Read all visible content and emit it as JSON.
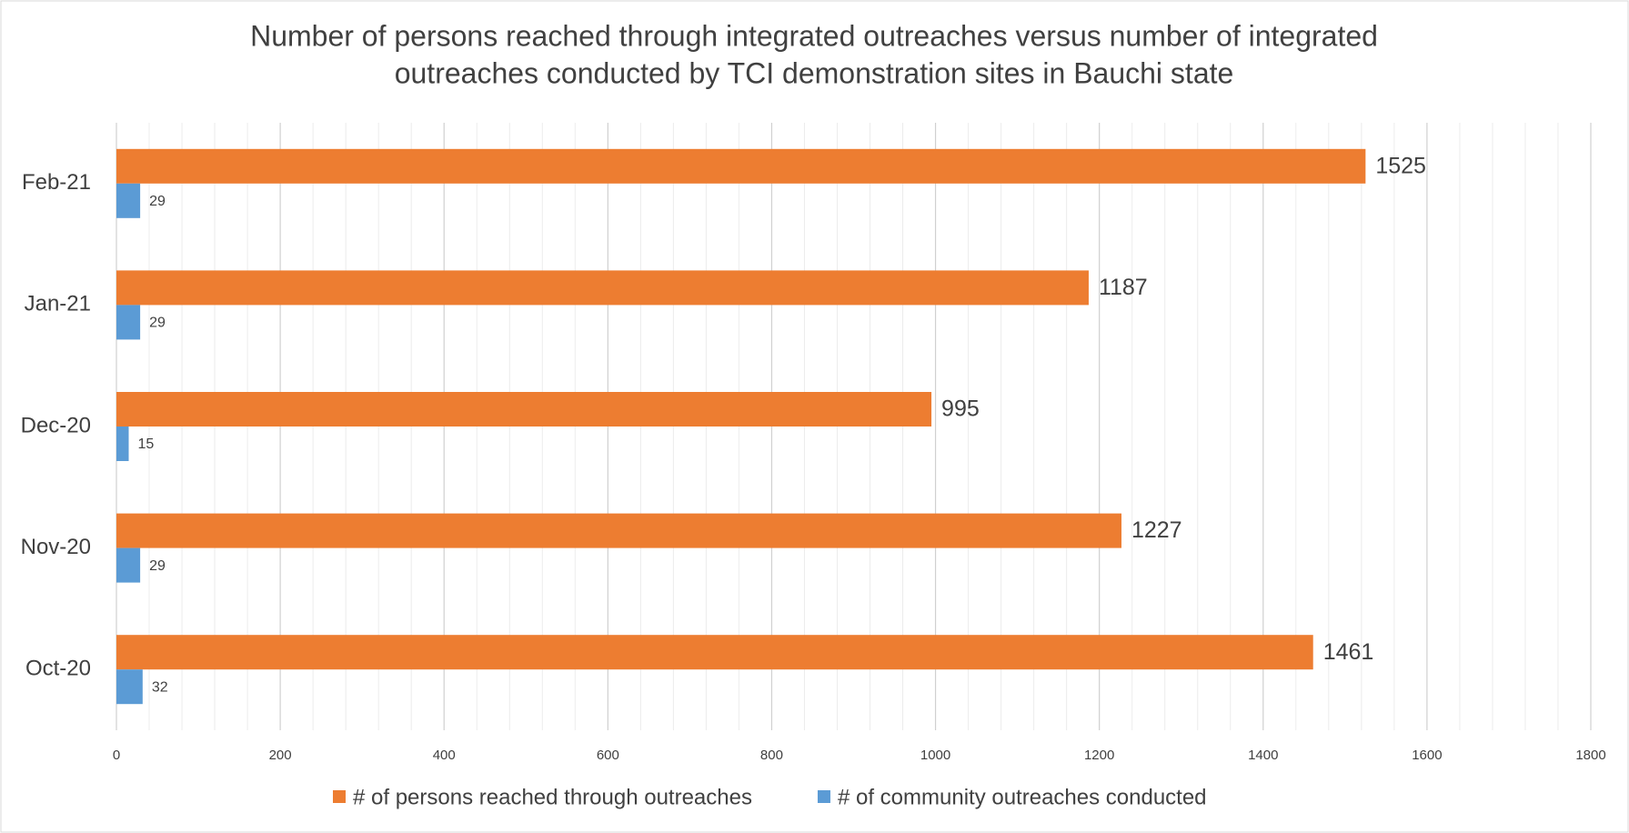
{
  "chart_data": {
    "type": "bar",
    "orientation": "horizontal",
    "title": "Number of persons reached through integrated outreaches versus number of integrated outreaches conducted by TCI demonstration sites in Bauchi state",
    "title_lines": [
      "Number of persons reached through integrated outreaches versus number of integrated",
      "outreaches conducted by TCI demonstration sites in Bauchi state"
    ],
    "categories": [
      "Oct-20",
      "Nov-20",
      "Dec-20",
      "Jan-21",
      "Feb-21"
    ],
    "series": [
      {
        "name": "# of persons reached through outreaches",
        "color": "#ED7D31",
        "values": [
          1461,
          1227,
          995,
          1187,
          1525
        ]
      },
      {
        "name": "# of community outreaches conducted",
        "color": "#5B9BD5",
        "values": [
          32,
          29,
          15,
          29,
          29
        ]
      }
    ],
    "xlim": [
      0,
      1800
    ],
    "xticks": [
      0,
      200,
      400,
      600,
      800,
      1000,
      1200,
      1400,
      1600,
      1800
    ],
    "grid": true,
    "minor_grid": true,
    "legend": "bottom"
  }
}
